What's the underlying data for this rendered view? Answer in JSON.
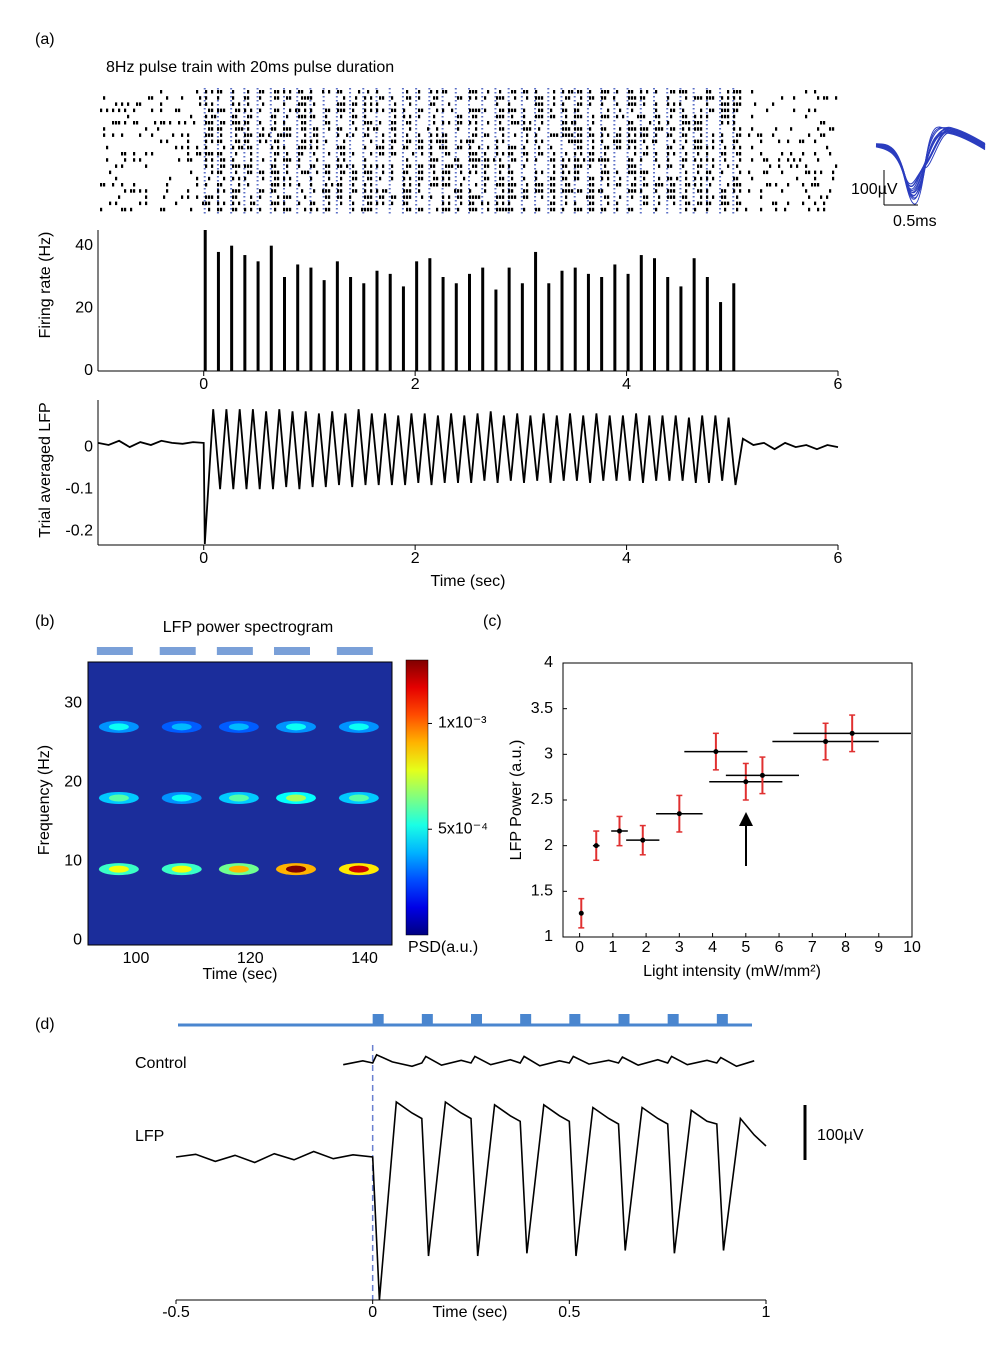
{
  "panel_labels": [
    "(a)",
    "(b)",
    "(c)",
    "(d)"
  ],
  "chart_data": [
    {
      "type": "raster",
      "title": "8Hz pulse train with 20ms pulse duration",
      "title_color": "#4a7fc1",
      "pulse_color": "#5b6fc6",
      "waveform_color": "#2b3dbf",
      "waveform_scale": [
        {
          "value": 100,
          "label": "100µV"
        },
        {
          "value": 0.5,
          "label": "0.5ms"
        }
      ]
    },
    {
      "type": "bar",
      "ylabel": "Firing rate (Hz)",
      "color": "#000000",
      "x": [
        0,
        0.125,
        0.25,
        0.375,
        0.5,
        0.625,
        0.75,
        0.875,
        1,
        1.125,
        1.25,
        1.375,
        1.5,
        1.625,
        1.75,
        1.875,
        2,
        2.125,
        2.25,
        2.375,
        2.5,
        2.625,
        2.75,
        2.875,
        3,
        3.125,
        3.25,
        3.375,
        3.5,
        3.625,
        3.75,
        3.875,
        4,
        4.125,
        4.25,
        4.375,
        4.5,
        4.625,
        4.75,
        4.875,
        5
      ],
      "values": [
        45,
        38,
        40,
        37,
        35,
        40,
        30,
        34,
        33,
        29,
        35,
        30,
        28,
        32,
        31,
        27,
        35,
        36,
        30,
        28,
        31,
        33,
        26,
        33,
        28,
        38,
        28,
        32,
        33,
        31,
        30,
        34,
        31,
        37,
        36,
        30,
        27,
        36,
        30,
        22,
        28
      ],
      "xlim": [
        -1,
        6
      ],
      "xticks": [
        0,
        2,
        4,
        6
      ],
      "ylim": [
        0,
        45
      ],
      "yticks": [
        0,
        20,
        40
      ]
    },
    {
      "type": "line",
      "ylabel": "Trial averaged LFP",
      "xlabel": "Time (sec)",
      "color": "#000000",
      "x": [
        -1,
        -0.9,
        -0.8,
        -0.7,
        -0.6,
        -0.5,
        -0.4,
        -0.3,
        -0.2,
        -0.1,
        0,
        0.01,
        0.09,
        0.155,
        0.215,
        0.28,
        0.34,
        0.405,
        0.465,
        0.53,
        0.59,
        0.655,
        0.715,
        0.78,
        0.84,
        0.905,
        0.965,
        1.03,
        1.09,
        1.155,
        1.215,
        1.28,
        1.34,
        1.405,
        1.465,
        1.53,
        1.59,
        1.655,
        1.715,
        1.78,
        1.84,
        1.905,
        1.965,
        2.03,
        2.09,
        2.155,
        2.215,
        2.28,
        2.34,
        2.405,
        2.465,
        2.53,
        2.59,
        2.655,
        2.715,
        2.78,
        2.84,
        2.905,
        2.965,
        3.03,
        3.09,
        3.155,
        3.215,
        3.28,
        3.34,
        3.405,
        3.465,
        3.53,
        3.59,
        3.655,
        3.715,
        3.78,
        3.84,
        3.905,
        3.965,
        4.03,
        4.09,
        4.155,
        4.215,
        4.28,
        4.34,
        4.405,
        4.465,
        4.53,
        4.59,
        4.655,
        4.715,
        4.78,
        4.84,
        4.905,
        4.965,
        5.03,
        5.1,
        5.2,
        5.3,
        5.4,
        5.5,
        5.6,
        5.7,
        5.8,
        5.9,
        6
      ],
      "values": [
        0.01,
        0.005,
        0.015,
        0,
        0.012,
        0.005,
        0.015,
        0.01,
        0.008,
        0.012,
        0.01,
        -0.23,
        0.09,
        -0.1,
        0.09,
        -0.1,
        0.09,
        -0.1,
        0.09,
        -0.1,
        0.085,
        -0.1,
        0.09,
        -0.095,
        0.085,
        -0.1,
        0.085,
        -0.095,
        0.08,
        -0.095,
        0.085,
        -0.09,
        0.08,
        -0.095,
        0.09,
        -0.09,
        0.08,
        -0.09,
        0.08,
        -0.09,
        0.075,
        -0.09,
        0.08,
        -0.085,
        0.08,
        -0.09,
        0.075,
        -0.085,
        0.08,
        -0.085,
        0.075,
        -0.085,
        0.08,
        -0.08,
        0.085,
        -0.085,
        0.075,
        -0.08,
        0.08,
        -0.085,
        0.075,
        -0.08,
        0.08,
        -0.085,
        0.075,
        -0.08,
        0.08,
        -0.08,
        0.075,
        -0.085,
        0.08,
        -0.08,
        0.075,
        -0.08,
        0.075,
        -0.08,
        0.08,
        -0.085,
        0.075,
        -0.08,
        0.075,
        -0.08,
        0.075,
        -0.08,
        0.07,
        -0.085,
        0.075,
        -0.085,
        0.075,
        -0.08,
        0.07,
        -0.09,
        0.02,
        0.005,
        0.01,
        -0.005,
        0.01,
        0,
        0.005,
        -0.005,
        0.005,
        0
      ],
      "xlim": [
        -1,
        6
      ],
      "xticks": [
        0,
        2,
        4,
        6
      ],
      "ylim": [
        -0.23,
        0.1
      ],
      "yticks": [
        0,
        -0.1,
        -0.2
      ]
    },
    {
      "type": "heatmap",
      "title": "LFP power spectrogram",
      "xlabel": "Time (sec)",
      "ylabel": "Frequency (Hz)",
      "colorbar_label": "PSD(a.u.)",
      "background": "#1b2d9b",
      "x": [
        97,
        108,
        118,
        128,
        139
      ],
      "y": [
        9,
        18,
        27
      ],
      "values": [
        [
          0.0008,
          0.0008,
          0.0009,
          0.0013,
          0.0012
        ],
        [
          0.0006,
          0.0005,
          0.0006,
          0.0007,
          0.0006
        ],
        [
          0.0005,
          0.0004,
          0.0004,
          0.0005,
          0.0005
        ]
      ],
      "xlim": [
        91.6,
        144.8
      ],
      "xticks": [
        100,
        120,
        140
      ],
      "ylim": [
        -0.6,
        35.2
      ],
      "yticks": [
        0,
        10,
        20,
        30
      ],
      "clim": [
        0,
        0.0013
      ],
      "cticks": [
        {
          "value": 0.0005,
          "label": "5x10⁻⁴"
        },
        {
          "value": 0.001,
          "label": "1x10⁻³"
        }
      ]
    },
    {
      "type": "scatter",
      "xlabel": "Light intensity (mW/mm²)",
      "ylabel": "LFP Power (a.u.)",
      "color": "#000000",
      "yerr_color": "#e03030",
      "x": [
        0.05,
        0.5,
        1.2,
        1.9,
        3.0,
        4.1,
        5.0,
        5.5,
        7.4,
        8.2
      ],
      "values": [
        1.26,
        2.0,
        2.16,
        2.06,
        2.35,
        3.03,
        2.7,
        2.77,
        3.14,
        3.23
      ],
      "xerr": [
        0,
        0.1,
        0.25,
        0.5,
        0.7,
        0.95,
        1.1,
        1.1,
        1.6,
        1.77
      ],
      "yerr": [
        0.16,
        0.16,
        0.16,
        0.16,
        0.2,
        0.2,
        0.2,
        0.2,
        0.2,
        0.2
      ],
      "xlim": [
        -0.5,
        10
      ],
      "xticks": [
        0,
        1,
        2,
        3,
        4,
        5,
        6,
        7,
        8,
        9,
        10
      ],
      "ylim": [
        1,
        4
      ],
      "yticks": [
        1,
        1.5,
        2,
        2.5,
        3,
        3.5,
        4
      ]
    },
    {
      "type": "traces",
      "xlabel": "Time (sec)",
      "pulse_color": "#4a86cf",
      "pulses": [
        0,
        0.125,
        0.25,
        0.375,
        0.5,
        0.625,
        0.75,
        0.875
      ],
      "series": [
        {
          "name": "Control",
          "color": "#000000",
          "x": [
            -0.075,
            -0.025,
            0,
            0.01,
            0.05,
            0.1,
            0.125,
            0.135,
            0.175,
            0.225,
            0.25,
            0.26,
            0.3,
            0.35,
            0.375,
            0.385,
            0.425,
            0.475,
            0.5,
            0.51,
            0.55,
            0.6,
            0.625,
            0.635,
            0.675,
            0.725,
            0.75,
            0.76,
            0.8,
            0.85,
            0.875,
            0.885,
            0.925,
            0.97
          ],
          "values": [
            -3,
            4,
            0,
            15,
            2,
            -6,
            0,
            12,
            -4,
            5,
            0,
            12,
            -3,
            6,
            0,
            12,
            -5,
            4,
            0,
            12,
            -2,
            5,
            0,
            11,
            -4,
            6,
            0,
            12,
            -3,
            5,
            0,
            10,
            -6,
            4
          ]
        },
        {
          "name": "LFP",
          "color": "#000000",
          "x": [
            -0.5,
            -0.45,
            -0.4,
            -0.35,
            -0.3,
            -0.25,
            -0.2,
            -0.15,
            -0.1,
            -0.05,
            0,
            0.017,
            0.06,
            0.1,
            0.125,
            0.142,
            0.185,
            0.225,
            0.25,
            0.267,
            0.31,
            0.35,
            0.375,
            0.392,
            0.435,
            0.475,
            0.5,
            0.517,
            0.56,
            0.6,
            0.625,
            0.642,
            0.685,
            0.725,
            0.75,
            0.767,
            0.81,
            0.85,
            0.875,
            0.892,
            0.935,
            0.97,
            1.0
          ],
          "values": [
            0,
            5,
            -8,
            3,
            -10,
            6,
            -5,
            10,
            -3,
            4,
            0,
            -260,
            100,
            80,
            70,
            -180,
            100,
            80,
            70,
            -180,
            95,
            75,
            65,
            -175,
            95,
            75,
            65,
            -180,
            90,
            70,
            60,
            -170,
            90,
            70,
            60,
            -175,
            85,
            65,
            60,
            -170,
            70,
            40,
            20
          ]
        }
      ],
      "scale_bar": {
        "value": 100,
        "label": "100µV"
      },
      "xlim": [
        -0.5,
        1
      ],
      "xticks": [
        -0.5,
        0,
        0.5,
        1
      ]
    }
  ]
}
